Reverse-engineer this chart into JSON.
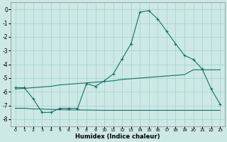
{
  "xlabel": "Humidex (Indice chaleur)",
  "background_color": "#cce9e5",
  "grid_color": "#aad4cf",
  "line_color": "#1a6e64",
  "xlim": [
    -0.5,
    23.5
  ],
  "ylim": [
    -8.5,
    0.5
  ],
  "yticks": [
    0,
    -1,
    -2,
    -3,
    -4,
    -5,
    -6,
    -7,
    -8
  ],
  "xticks": [
    0,
    1,
    2,
    3,
    4,
    5,
    6,
    7,
    8,
    9,
    10,
    11,
    12,
    13,
    14,
    15,
    16,
    17,
    18,
    19,
    20,
    21,
    22,
    23
  ],
  "curve1_x": [
    0,
    1,
    2,
    3,
    4,
    5,
    6,
    7,
    8,
    9,
    10,
    11,
    12,
    13,
    14,
    15,
    16,
    17,
    18,
    19,
    20,
    21,
    22,
    23
  ],
  "curve1_y": [
    -5.7,
    -5.7,
    -6.5,
    -7.5,
    -7.5,
    -7.2,
    -7.2,
    -7.2,
    -5.4,
    -5.6,
    -5.2,
    -4.7,
    -3.6,
    -2.5,
    -0.2,
    -0.1,
    -0.7,
    -1.6,
    -2.5,
    -3.35,
    -3.65,
    -4.35,
    -5.8,
    -6.9
  ],
  "curve2_x": [
    0,
    1,
    2,
    3,
    4,
    5,
    6,
    7,
    8,
    9,
    10,
    11,
    12,
    13,
    14,
    15,
    16,
    17,
    18,
    19,
    20,
    21,
    22,
    23
  ],
  "curve2_y": [
    -7.2,
    -7.2,
    -7.25,
    -7.25,
    -7.28,
    -7.3,
    -7.32,
    -7.32,
    -7.33,
    -7.34,
    -7.35,
    -7.35,
    -7.35,
    -7.35,
    -7.35,
    -7.35,
    -7.35,
    -7.35,
    -7.35,
    -7.35,
    -7.35,
    -7.35,
    -7.35,
    -7.35
  ],
  "curve3_x": [
    0,
    1,
    2,
    3,
    4,
    5,
    6,
    7,
    8,
    9,
    10,
    11,
    12,
    13,
    14,
    15,
    16,
    17,
    18,
    19,
    20,
    21,
    22,
    23
  ],
  "curve3_y": [
    -5.8,
    -5.75,
    -5.7,
    -5.65,
    -5.6,
    -5.5,
    -5.45,
    -5.4,
    -5.35,
    -5.3,
    -5.25,
    -5.2,
    -5.1,
    -5.05,
    -5.0,
    -4.95,
    -4.9,
    -4.85,
    -4.8,
    -4.75,
    -4.4,
    -4.4,
    -4.4,
    -4.4
  ]
}
